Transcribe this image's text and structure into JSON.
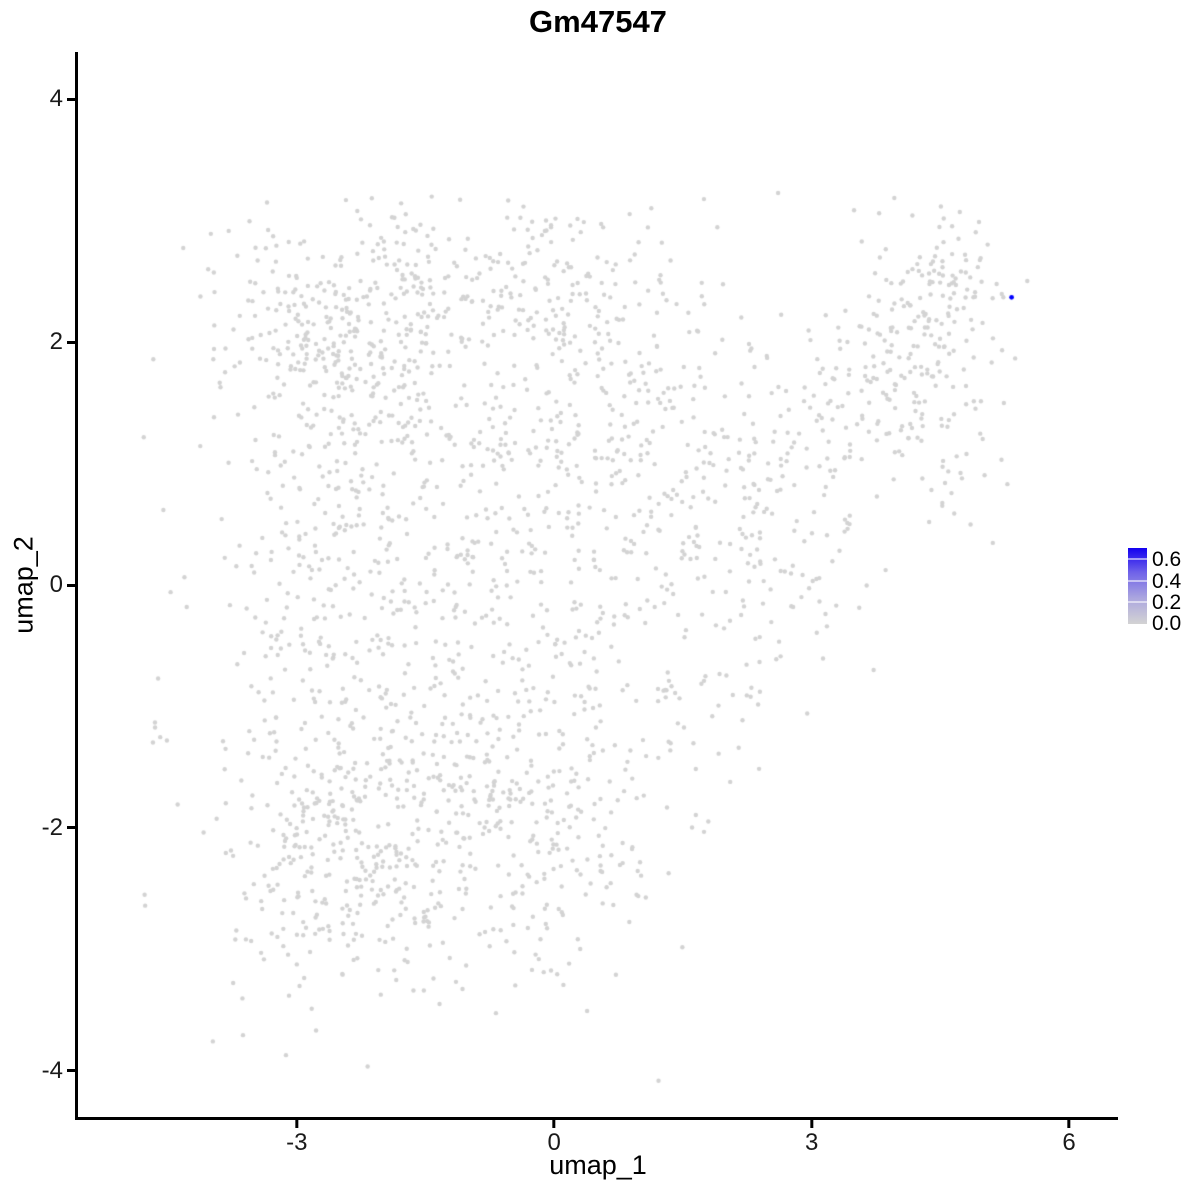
{
  "plot": {
    "title": "Gm47547",
    "x_axis": {
      "label": "umap_1",
      "ticks": [
        -3,
        0,
        3,
        6
      ],
      "lim": [
        -5.55,
        6.57
      ]
    },
    "y_axis": {
      "label": "umap_2",
      "ticks": [
        4,
        2,
        0,
        -2,
        -4
      ],
      "lim": [
        -4.38,
        4.39
      ]
    },
    "colors": {
      "point": "#D3D3D3",
      "highlight": "#0000FF",
      "axis": "#000000",
      "background": "#FFFFFF"
    }
  },
  "legend": {
    "labels": [
      "0.6",
      "0.4",
      "0.2",
      "0.0"
    ],
    "values": [
      0.6,
      0.4,
      0.2,
      0.0
    ],
    "gradient_bottom_to_top": [
      "#D3D3D3",
      "#ABA6DF",
      "#6F62E9",
      "#1200F0"
    ]
  },
  "chart_data": {
    "type": "scatter",
    "title": "Gm47547",
    "xlabel": "umap_1",
    "ylabel": "umap_2",
    "xlim": [
      -5.55,
      6.57
    ],
    "ylim": [
      -4.38,
      4.39
    ],
    "x_ticks": [
      -3,
      0,
      3,
      6
    ],
    "y_ticks": [
      4,
      2,
      0,
      -2,
      -4
    ],
    "grid": false,
    "legend_position": "right",
    "point_radius_px": 2.2,
    "n_points_approx": 2480,
    "base_color": "#D3D3D3",
    "expression_scale": {
      "min": 0.0,
      "max": 0.6,
      "low_color": "#D3D3D3",
      "high_color": "#0000FF"
    },
    "highlighted_cells": [
      {
        "x": 5.33,
        "y": 2.37,
        "value": 0.6,
        "color": "#0000FF"
      }
    ],
    "cloud_bounds": {
      "x_min": -4.8,
      "x_max": 5.4,
      "y_min": -3.55,
      "y_max": 3.2
    },
    "y_clip_max": 3.25,
    "seed": 7,
    "density_clusters": [
      {
        "cx": -2.45,
        "cy": 2.1,
        "sx": 0.72,
        "sy": 0.58,
        "rot": 0,
        "n": 320
      },
      {
        "cx": -0.55,
        "cy": 2.5,
        "sx": 0.95,
        "sy": 0.42,
        "rot": 0,
        "n": 210
      },
      {
        "cx": -1.5,
        "cy": 0.9,
        "sx": 1.0,
        "sy": 0.75,
        "rot": 0,
        "n": 250
      },
      {
        "cx": -2.75,
        "cy": -0.2,
        "sx": 0.6,
        "sy": 0.95,
        "rot": 0,
        "n": 180
      },
      {
        "cx": -2.4,
        "cy": -2.2,
        "sx": 0.8,
        "sy": 0.6,
        "rot": 0,
        "n": 330
      },
      {
        "cx": -1.25,
        "cy": -1.15,
        "sx": 0.7,
        "sy": 0.7,
        "rot": 0,
        "n": 150
      },
      {
        "cx": -0.2,
        "cy": -2.1,
        "sx": 0.75,
        "sy": 0.62,
        "rot": 0,
        "n": 190
      },
      {
        "cx": 0.3,
        "cy": -0.45,
        "sx": 0.8,
        "sy": 0.9,
        "rot": 0,
        "n": 160
      },
      {
        "cx": 0.55,
        "cy": 1.35,
        "sx": 0.8,
        "sy": 0.7,
        "rot": 0,
        "n": 150
      },
      {
        "cx": 1.7,
        "cy": 0.8,
        "sx": 0.7,
        "sy": 0.8,
        "rot": 0,
        "n": 110
      },
      {
        "cx": 2.9,
        "cy": 1.1,
        "sx": 0.75,
        "sy": 0.5,
        "rot": 35,
        "n": 110
      },
      {
        "cx": 3.9,
        "cy": 1.85,
        "sx": 0.6,
        "sy": 0.45,
        "rot": 35,
        "n": 120
      },
      {
        "cx": 4.55,
        "cy": 2.45,
        "sx": 0.38,
        "sy": 0.42,
        "rot": 0,
        "n": 95
      },
      {
        "cx": 2.25,
        "cy": -0.5,
        "sx": 0.9,
        "sy": 0.32,
        "rot": 40,
        "n": 70
      },
      {
        "cx": 4.75,
        "cy": 1.1,
        "sx": 0.25,
        "sy": 0.4,
        "rot": 0,
        "n": 30
      },
      {
        "cx": -4.62,
        "cy": -1.22,
        "sx": 0.08,
        "sy": 0.1,
        "rot": 0,
        "n": 5
      }
    ]
  }
}
